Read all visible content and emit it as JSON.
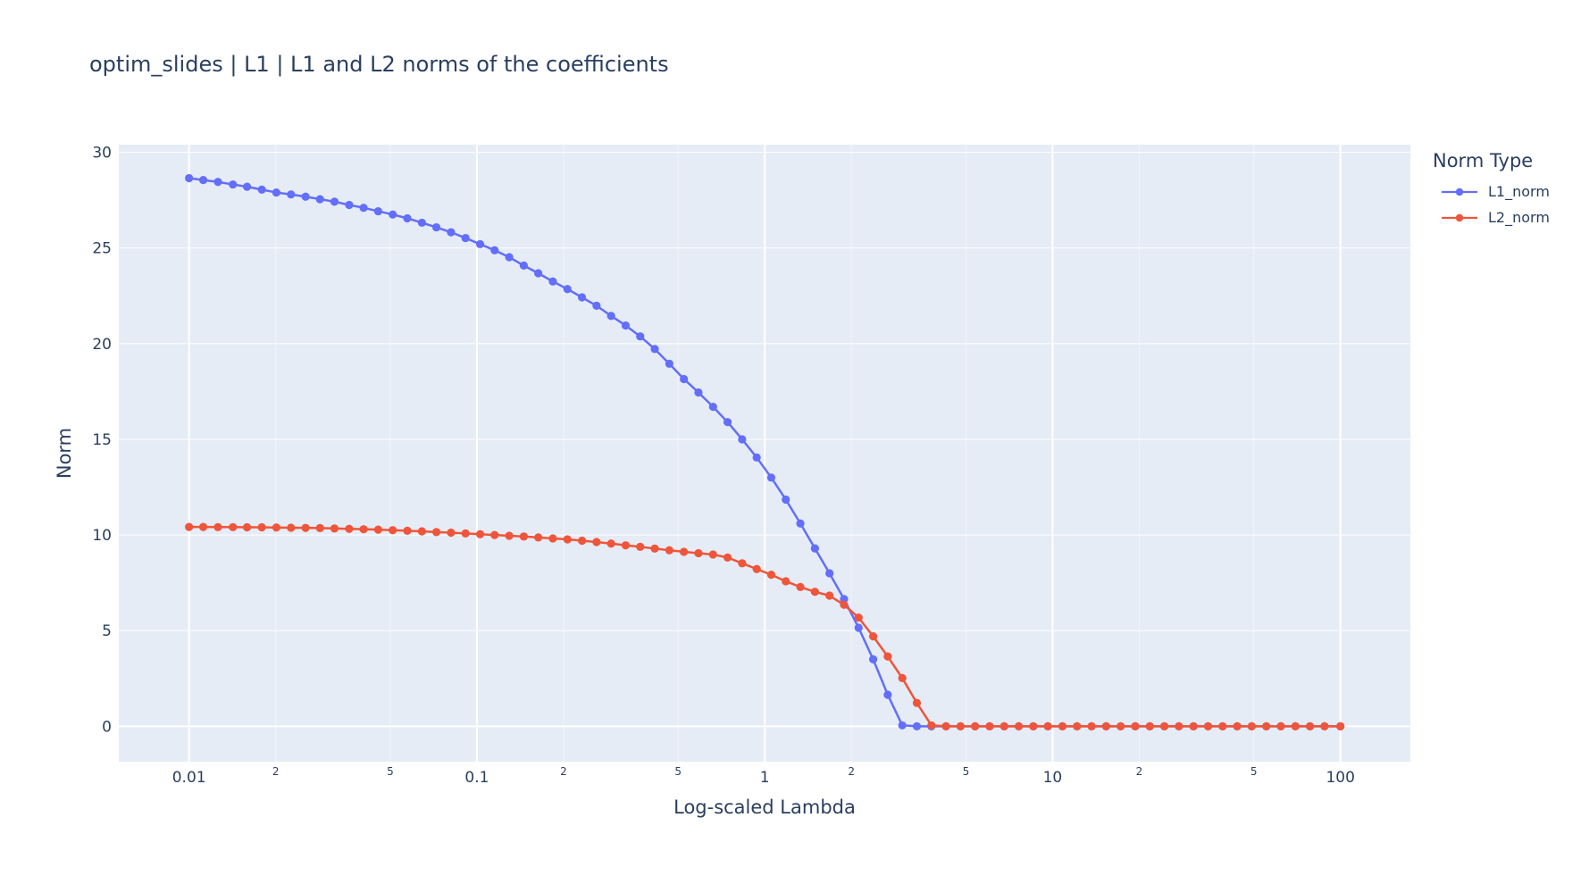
{
  "chart_data": {
    "type": "line",
    "title": "optim_slides | L1 | L1 and L2 norms of the coefficients",
    "xlabel": "Log-scaled Lambda",
    "ylabel": "Norm",
    "x_scale": "log",
    "xlim": [
      0.0057,
      175
    ],
    "ylim": [
      -1.85,
      30.4
    ],
    "grid": true,
    "legend_title": "Norm Type",
    "legend_placement": "right",
    "x_major_ticks": [
      {
        "value": 0.01,
        "label": "0.01"
      },
      {
        "value": 0.1,
        "label": "0.1"
      },
      {
        "value": 1,
        "label": "1"
      },
      {
        "value": 10,
        "label": "10"
      },
      {
        "value": 100,
        "label": "100"
      }
    ],
    "x_minor_ticks": [
      {
        "value": 0.02,
        "label": "2"
      },
      {
        "value": 0.05,
        "label": "5"
      },
      {
        "value": 0.2,
        "label": "2"
      },
      {
        "value": 0.5,
        "label": "5"
      },
      {
        "value": 2,
        "label": "2"
      },
      {
        "value": 5,
        "label": "5"
      },
      {
        "value": 20,
        "label": "2"
      },
      {
        "value": 50,
        "label": "5"
      }
    ],
    "y_ticks": [
      0,
      5,
      10,
      15,
      20,
      25,
      30
    ],
    "x": [
      0.01,
      0.0112,
      0.0126,
      0.0142,
      0.0159,
      0.0179,
      0.0201,
      0.0226,
      0.0254,
      0.0285,
      0.032,
      0.036,
      0.0404,
      0.0454,
      0.051,
      0.0573,
      0.0644,
      0.0723,
      0.0813,
      0.0913,
      0.1026,
      0.1152,
      0.1295,
      0.1455,
      0.1634,
      0.1836,
      0.2063,
      0.2318,
      0.2604,
      0.2926,
      0.3287,
      0.3693,
      0.4149,
      0.4662,
      0.5238,
      0.5885,
      0.6612,
      0.7428,
      0.8346,
      0.9377,
      1.0535,
      1.1836,
      1.3298,
      1.4941,
      1.6787,
      1.886,
      2.119,
      2.3808,
      2.6749,
      3.0053,
      3.3765,
      3.7936,
      4.2623,
      4.7888,
      5.3804,
      6.0451,
      6.7918,
      7.6308,
      8.5735,
      9.6326,
      10.8225,
      12.1594,
      13.6615,
      15.3491,
      17.2452,
      19.3756,
      21.7691,
      24.4582,
      27.4796,
      30.8742,
      34.6881,
      38.9732,
      43.7876,
      49.1968,
      55.2741,
      62.1022,
      69.7737,
      78.3929,
      88.0768,
      100
    ],
    "series": [
      {
        "name": "L1_norm",
        "color": "#636efa",
        "values": [
          28.65,
          28.55,
          28.45,
          28.32,
          28.2,
          28.05,
          27.9,
          27.8,
          27.68,
          27.55,
          27.42,
          27.25,
          27.1,
          26.92,
          26.75,
          26.55,
          26.32,
          26.08,
          25.82,
          25.52,
          25.2,
          24.88,
          24.52,
          24.08,
          23.68,
          23.25,
          22.85,
          22.42,
          21.98,
          21.45,
          20.95,
          20.38,
          19.72,
          18.95,
          18.15,
          17.45,
          16.7,
          15.9,
          15.0,
          14.05,
          13.0,
          11.85,
          10.6,
          9.3,
          8.0,
          6.65,
          5.15,
          3.5,
          1.65,
          0.05,
          0.0,
          0.0,
          0.0,
          0.0,
          0.0,
          0.0,
          0.0,
          0.0,
          0.0,
          0.0,
          0.0,
          0.0,
          0.0,
          0.0,
          0.0,
          0.0,
          0.0,
          0.0,
          0.0,
          0.0,
          0.0,
          0.0,
          0.0,
          0.0,
          0.0,
          0.0,
          0.0,
          0.0,
          0.0,
          0.0
        ]
      },
      {
        "name": "L2_norm",
        "color": "#ef553b",
        "values": [
          10.42,
          10.42,
          10.41,
          10.41,
          10.4,
          10.4,
          10.39,
          10.38,
          10.37,
          10.36,
          10.34,
          10.32,
          10.3,
          10.28,
          10.25,
          10.22,
          10.19,
          10.15,
          10.12,
          10.08,
          10.04,
          10.0,
          9.96,
          9.92,
          9.87,
          9.82,
          9.77,
          9.7,
          9.63,
          9.55,
          9.46,
          9.38,
          9.29,
          9.2,
          9.12,
          9.05,
          8.98,
          8.82,
          8.52,
          8.22,
          7.92,
          7.58,
          7.28,
          7.03,
          6.83,
          6.35,
          5.68,
          4.7,
          3.65,
          2.52,
          1.22,
          0.05,
          0.0,
          0.0,
          0.0,
          0.0,
          0.0,
          0.0,
          0.0,
          0.0,
          0.0,
          0.0,
          0.0,
          0.0,
          0.0,
          0.0,
          0.0,
          0.0,
          0.0,
          0.0,
          0.0,
          0.0,
          0.0,
          0.0,
          0.0,
          0.0,
          0.0,
          0.0,
          0.0,
          0.0
        ]
      }
    ]
  }
}
